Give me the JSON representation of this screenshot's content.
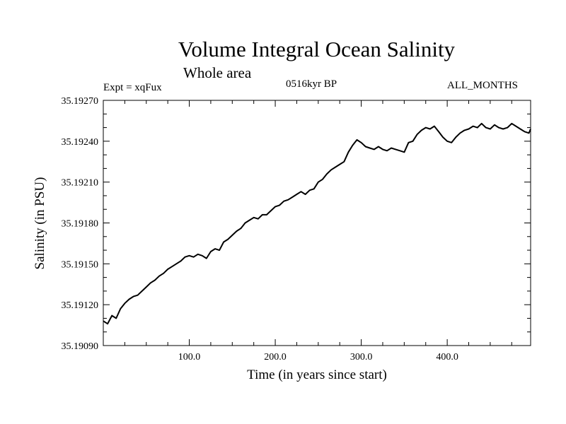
{
  "header": {
    "title": "Volume Integral Ocean Salinity",
    "subtitle": "Whole area",
    "experiment": "Expt = xqFux",
    "period": "0516kyr BP",
    "months": "ALL_MONTHS"
  },
  "chart_data": {
    "type": "line",
    "title": "Volume Integral Ocean Salinity",
    "subtitle": "Whole area",
    "xlabel": "Time (in years since start)",
    "ylabel": "Salinity (in PSU)",
    "xlim": [
      0,
      497
    ],
    "ylim": [
      35.1909,
      35.1927
    ],
    "x_ticks": [
      100,
      200,
      300,
      400
    ],
    "x_tick_labels": [
      "100.0",
      "200.0",
      "300.0",
      "400.0"
    ],
    "y_ticks": [
      35.1909,
      35.1912,
      35.1915,
      35.1918,
      35.1921,
      35.1924,
      35.1927
    ],
    "y_tick_labels": [
      "35.19090",
      "35.19120",
      "35.19150",
      "35.19180",
      "35.19210",
      "35.19240",
      "35.19270"
    ],
    "grid": false,
    "line_color": "#000000",
    "series": [
      {
        "name": "Salinity",
        "x": [
          0,
          5,
          10,
          15,
          20,
          25,
          30,
          35,
          40,
          45,
          50,
          55,
          60,
          65,
          70,
          75,
          80,
          85,
          90,
          95,
          100,
          105,
          110,
          115,
          120,
          125,
          130,
          135,
          140,
          145,
          150,
          155,
          160,
          165,
          170,
          175,
          180,
          185,
          190,
          195,
          200,
          205,
          210,
          215,
          220,
          225,
          230,
          235,
          240,
          245,
          250,
          255,
          260,
          265,
          270,
          275,
          280,
          285,
          290,
          295,
          300,
          305,
          310,
          315,
          320,
          325,
          330,
          335,
          340,
          345,
          350,
          355,
          360,
          365,
          370,
          375,
          380,
          385,
          390,
          395,
          400,
          405,
          410,
          415,
          420,
          425,
          430,
          435,
          440,
          445,
          450,
          455,
          460,
          465,
          470,
          475,
          480,
          485,
          490,
          495,
          497
        ],
        "y": [
          35.19108,
          35.19106,
          35.19112,
          35.1911,
          35.19117,
          35.19121,
          35.19124,
          35.19126,
          35.19127,
          35.1913,
          35.19133,
          35.19136,
          35.19138,
          35.19141,
          35.19143,
          35.19146,
          35.19148,
          35.1915,
          35.19152,
          35.19155,
          35.19156,
          35.19155,
          35.19157,
          35.19156,
          35.19154,
          35.19159,
          35.19161,
          35.1916,
          35.19166,
          35.19168,
          35.19171,
          35.19174,
          35.19176,
          35.1918,
          35.19182,
          35.19184,
          35.19183,
          35.19186,
          35.19186,
          35.19189,
          35.19192,
          35.19193,
          35.19196,
          35.19197,
          35.19199,
          35.19201,
          35.19203,
          35.19201,
          35.19204,
          35.19205,
          35.1921,
          35.19212,
          35.19216,
          35.19219,
          35.19221,
          35.19223,
          35.19225,
          35.19232,
          35.19237,
          35.19241,
          35.19239,
          35.19236,
          35.19235,
          35.19234,
          35.19236,
          35.19234,
          35.19233,
          35.19235,
          35.19234,
          35.19233,
          35.19232,
          35.19239,
          35.1924,
          35.19245,
          35.19248,
          35.1925,
          35.19249,
          35.19251,
          35.19247,
          35.19243,
          35.1924,
          35.19239,
          35.19243,
          35.19246,
          35.19248,
          35.19249,
          35.19251,
          35.1925,
          35.19253,
          35.1925,
          35.19249,
          35.19252,
          35.1925,
          35.19249,
          35.1925,
          35.19253,
          35.19251,
          35.19249,
          35.19247,
          35.19246,
          35.19249
        ]
      }
    ]
  }
}
